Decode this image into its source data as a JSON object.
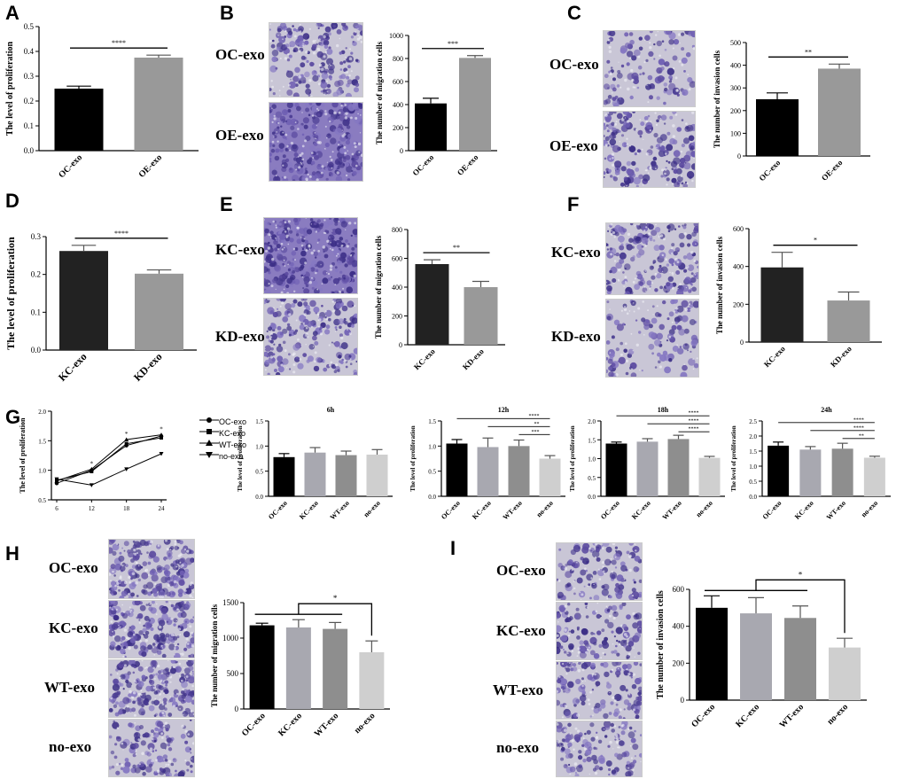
{
  "panel_letters": [
    "A",
    "B",
    "C",
    "D",
    "E",
    "F",
    "G",
    "H",
    "I"
  ],
  "micro_labels": {
    "B": [
      "OC-exo",
      "OE-exo"
    ],
    "C": [
      "OC-exo",
      "OE-exo"
    ],
    "E": [
      "KC-exo",
      "KD-exo"
    ],
    "F": [
      "KC-exo",
      "KD-exo"
    ],
    "H": [
      "OC-exo",
      "KC-exo",
      "WT-exo",
      "no-exo"
    ],
    "I": [
      "OC-exo",
      "KC-exo",
      "WT-exo",
      "no-exo"
    ]
  },
  "colors": {
    "black": "#000000",
    "grey": "#999999",
    "dgrey": "#222222",
    "mgrey": "#a8a8b0",
    "wgrey": "#8e8e8e",
    "lgrey": "#cfcfcf",
    "stain": "#5b4aa0"
  },
  "legend_G": [
    "OC-exo",
    "KC-exo",
    "WT-exo",
    "no-exo"
  ],
  "chart_data": [
    {
      "id": "A",
      "type": "bar",
      "categories": [
        "OC-exo",
        "OE-exo"
      ],
      "values": [
        0.25,
        0.375
      ],
      "errors": [
        0.01,
        0.01
      ],
      "ylabel": "The level of proliferation",
      "ylim": [
        0,
        0.5
      ],
      "yticks": [
        "0.0",
        "0.1",
        "0.2",
        "0.3",
        "0.4",
        "0.5"
      ],
      "sig": [
        "****"
      ]
    },
    {
      "id": "B",
      "type": "bar",
      "categories": [
        "OC-exo",
        "OE-exo"
      ],
      "values": [
        410,
        805
      ],
      "errors": [
        45,
        20
      ],
      "ylabel": "The number of migration cells",
      "ylim": [
        0,
        1000
      ],
      "yticks": [
        "0",
        "200",
        "400",
        "600",
        "800",
        "1000"
      ],
      "sig": [
        "***"
      ]
    },
    {
      "id": "C",
      "type": "bar",
      "categories": [
        "OC-exo",
        "OE-exo"
      ],
      "values": [
        250,
        385
      ],
      "errors": [
        28,
        20
      ],
      "ylabel": "The number of invasion cells",
      "ylim": [
        0,
        500
      ],
      "yticks": [
        "0",
        "100",
        "200",
        "300",
        "400",
        "500"
      ],
      "sig": [
        "**"
      ]
    },
    {
      "id": "D",
      "type": "bar",
      "categories": [
        "KC-exo",
        "KD-exo"
      ],
      "values": [
        0.262,
        0.202
      ],
      "errors": [
        0.015,
        0.01
      ],
      "ylabel": "The level of proliferation",
      "ylim": [
        0,
        0.3
      ],
      "yticks": [
        "0.0",
        "0.1",
        "0.2",
        "0.3"
      ],
      "sig": [
        "****"
      ]
    },
    {
      "id": "E",
      "type": "bar",
      "categories": [
        "KC-exo",
        "KD-exo"
      ],
      "values": [
        560,
        400
      ],
      "errors": [
        30,
        40
      ],
      "ylabel": "The number of migration cells",
      "ylim": [
        0,
        800
      ],
      "yticks": [
        "0",
        "200",
        "400",
        "600",
        "800"
      ],
      "sig": [
        "**"
      ]
    },
    {
      "id": "F",
      "type": "bar",
      "categories": [
        "KC-exo",
        "KD-exo"
      ],
      "values": [
        395,
        220
      ],
      "errors": [
        80,
        45
      ],
      "ylabel": "The number of invasion cells",
      "ylim": [
        0,
        600
      ],
      "yticks": [
        "0",
        "200",
        "400",
        "600"
      ],
      "sig": [
        "*"
      ]
    },
    {
      "id": "G1",
      "type": "line",
      "x": [
        6,
        12,
        18,
        24
      ],
      "xticks": [
        "6",
        "12",
        "18",
        "24"
      ],
      "ylabel": "The level of proliferation",
      "ylim": [
        0.5,
        2.0
      ],
      "yticks": [
        "0.5",
        "1.0",
        "1.5",
        "2.0"
      ],
      "series": [
        {
          "name": "OC-exo",
          "values": [
            0.78,
            1.0,
            1.42,
            1.58
          ]
        },
        {
          "name": "KC-exo",
          "values": [
            0.83,
            0.98,
            1.45,
            1.55
          ]
        },
        {
          "name": "WT-exo",
          "values": [
            0.82,
            1.02,
            1.52,
            1.6
          ]
        },
        {
          "name": "no-exo",
          "values": [
            0.85,
            0.75,
            1.02,
            1.28
          ]
        }
      ],
      "sig": [
        "*",
        "*",
        "*"
      ]
    },
    {
      "id": "G2",
      "type": "bar",
      "title": "6h",
      "categories": [
        "OC-exo",
        "KC-exo",
        "WT-exo",
        "no-exo"
      ],
      "values": [
        0.78,
        0.87,
        0.82,
        0.83
      ],
      "errors": [
        0.07,
        0.1,
        0.08,
        0.1
      ],
      "ylabel": "The level of proliferation",
      "ylim": [
        0,
        1.5
      ],
      "yticks": [
        "0.0",
        "0.5",
        "1.0",
        "1.5"
      ],
      "sig": []
    },
    {
      "id": "G3",
      "type": "bar",
      "title": "12h",
      "categories": [
        "OC-exo",
        "KC-exo",
        "WT-exo",
        "no-exo"
      ],
      "values": [
        1.05,
        0.98,
        1.0,
        0.75
      ],
      "errors": [
        0.08,
        0.18,
        0.12,
        0.06
      ],
      "ylabel": "The level of proliferation",
      "ylim": [
        0,
        1.5
      ],
      "yticks": [
        "0.0",
        "0.5",
        "1.0",
        "1.5"
      ],
      "sig": [
        "****",
        "**",
        "***"
      ]
    },
    {
      "id": "G4",
      "type": "bar",
      "title": "18h",
      "categories": [
        "OC-exo",
        "KC-exo",
        "WT-exo",
        "no-exo"
      ],
      "values": [
        1.4,
        1.45,
        1.52,
        1.02
      ],
      "errors": [
        0.04,
        0.08,
        0.1,
        0.04
      ],
      "ylabel": "The level of proliferation",
      "ylim": [
        0,
        2.0
      ],
      "yticks": [
        "0.0",
        "0.5",
        "1.0",
        "1.5",
        "2.0"
      ],
      "sig": [
        "****",
        "****",
        "****"
      ]
    },
    {
      "id": "G5",
      "type": "bar",
      "title": "24h",
      "categories": [
        "OC-exo",
        "KC-exo",
        "WT-exo",
        "no-exo"
      ],
      "values": [
        1.68,
        1.55,
        1.58,
        1.28
      ],
      "errors": [
        0.12,
        0.1,
        0.18,
        0.05
      ],
      "ylabel": "The level of proliferation",
      "ylim": [
        0,
        2.5
      ],
      "yticks": [
        "0.0",
        "0.5",
        "1.0",
        "1.5",
        "2.0",
        "2.5"
      ],
      "sig": [
        "****",
        "****",
        "**"
      ]
    },
    {
      "id": "H",
      "type": "bar",
      "categories": [
        "OC-exo",
        "KC-exo",
        "WT-exo",
        "no-exo"
      ],
      "values": [
        1180,
        1150,
        1130,
        800
      ],
      "errors": [
        30,
        110,
        90,
        160
      ],
      "ylabel": "The number of migration cells",
      "ylim": [
        0,
        1500
      ],
      "yticks": [
        "0",
        "500",
        "1000",
        "1500"
      ],
      "sig": [
        "*"
      ]
    },
    {
      "id": "I",
      "type": "bar",
      "categories": [
        "OC-exo",
        "KC-exo",
        "WT-exo",
        "no-exo"
      ],
      "values": [
        500,
        470,
        445,
        285
      ],
      "errors": [
        65,
        85,
        65,
        50
      ],
      "ylabel": "The number of invasion cells",
      "ylim": [
        0,
        600
      ],
      "yticks": [
        "0",
        "200",
        "400",
        "600"
      ],
      "sig": [
        "*"
      ]
    }
  ]
}
